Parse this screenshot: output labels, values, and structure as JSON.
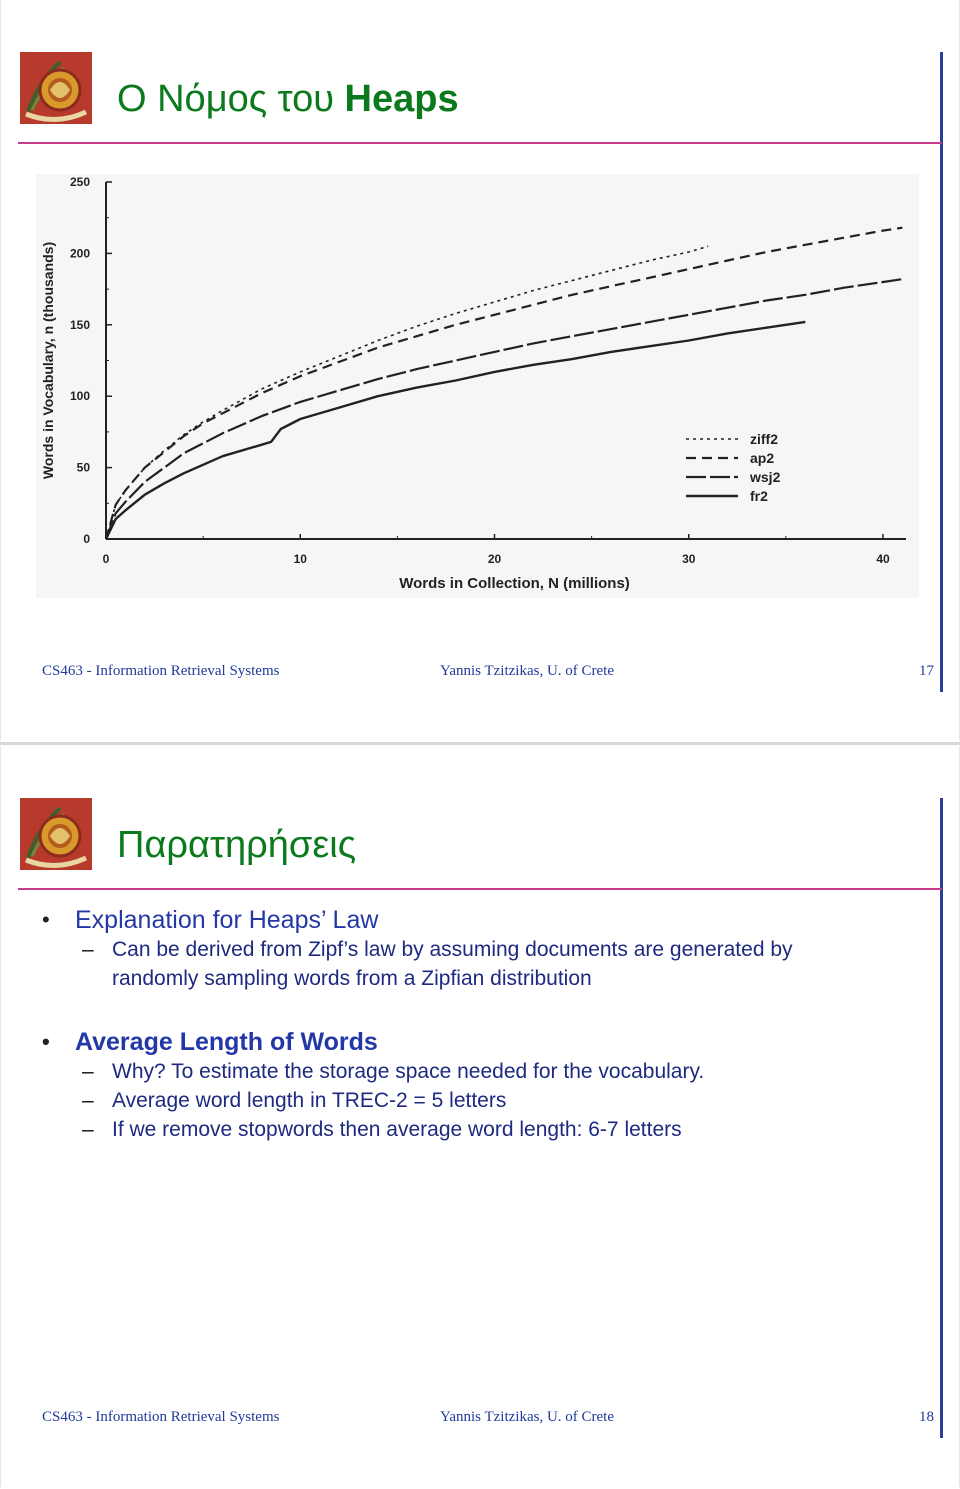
{
  "slides": [
    {
      "title_prefix": "Ο Νόμος του ",
      "title_bold": "Heaps",
      "footer": {
        "course": "CS463 - Information Retrieval Systems",
        "author": "Yannis Tzitzikas, U. of Crete",
        "page": "17"
      }
    },
    {
      "title": "Παρατηρήσεις",
      "bullets": [
        {
          "text": "Explanation for Heaps’ Law",
          "bold": false,
          "subs": [
            "Can be derived from Zipf’s law by assuming documents are generated by",
            "randomly sampling words from a Zipfian distribution"
          ]
        },
        {
          "text": "Average Length of Words",
          "bold": true,
          "subs": [
            "Why? To estimate the storage space needed for the vocabulary.",
            "Average word length in TREC-2 =  5 letters",
            "If we remove stopwords then average word length:  6-7 letters"
          ]
        }
      ],
      "footer": {
        "course": "CS463 - Information Retrieval Systems",
        "author": "Yannis Tzitzikas, U. of Crete",
        "page": "18"
      }
    }
  ],
  "logo_text": "UNIVERSITY OF CRETE",
  "chart_data": {
    "type": "line",
    "title": "",
    "xlabel": "Words in Collection, N (millions)",
    "ylabel": "Words in Vocabulary, n (thousands)",
    "xlim": [
      0,
      41
    ],
    "ylim": [
      0,
      250
    ],
    "xticks": [
      0,
      10,
      20,
      30,
      40
    ],
    "yticks": [
      0,
      50,
      100,
      150,
      200,
      250
    ],
    "legend_position": "lower-right",
    "series": [
      {
        "name": "ziff2",
        "dash": "dotted",
        "x": [
          0,
          0.5,
          1,
          2,
          3,
          4,
          5,
          6,
          8,
          10,
          12,
          14,
          16,
          18,
          20,
          22,
          24,
          26,
          28,
          30,
          31
        ],
        "y": [
          0,
          24,
          34,
          50,
          62,
          73,
          82,
          90,
          105,
          117,
          128,
          139,
          149,
          158,
          166,
          174,
          181,
          188,
          195,
          201,
          205
        ]
      },
      {
        "name": "ap2",
        "dash": "dashed",
        "x": [
          0,
          0.5,
          1,
          2,
          3,
          4,
          5,
          6,
          8,
          10,
          12,
          14,
          16,
          18,
          20,
          22,
          24,
          26,
          28,
          30,
          32,
          34,
          36,
          38,
          40,
          41
        ],
        "y": [
          0,
          24,
          34,
          50,
          61,
          72,
          81,
          88,
          102,
          114,
          124,
          134,
          142,
          150,
          157,
          164,
          171,
          177,
          183,
          189,
          195,
          201,
          206,
          211,
          216,
          218
        ]
      },
      {
        "name": "wsj2",
        "dash": "long-dash",
        "x": [
          0,
          0.5,
          1,
          2,
          3,
          4,
          6,
          8,
          10,
          12,
          14,
          16,
          18,
          20,
          22,
          24,
          26,
          28,
          30,
          32,
          34,
          36,
          38,
          40,
          41
        ],
        "y": [
          0,
          18,
          26,
          40,
          50,
          60,
          74,
          86,
          96,
          104,
          112,
          119,
          125,
          131,
          137,
          142,
          147,
          152,
          157,
          162,
          167,
          171,
          176,
          180,
          182
        ]
      },
      {
        "name": "fr2",
        "dash": "solid",
        "x": [
          0,
          0.5,
          1,
          2,
          3,
          4,
          6,
          8,
          8.5,
          9,
          10,
          12,
          14,
          16,
          18,
          20,
          22,
          24,
          26,
          28,
          30,
          32,
          34,
          36
        ],
        "y": [
          0,
          14,
          20,
          31,
          39,
          46,
          58,
          66,
          68,
          77,
          84,
          92,
          100,
          106,
          111,
          117,
          122,
          126,
          131,
          135,
          139,
          144,
          148,
          152
        ]
      }
    ]
  }
}
